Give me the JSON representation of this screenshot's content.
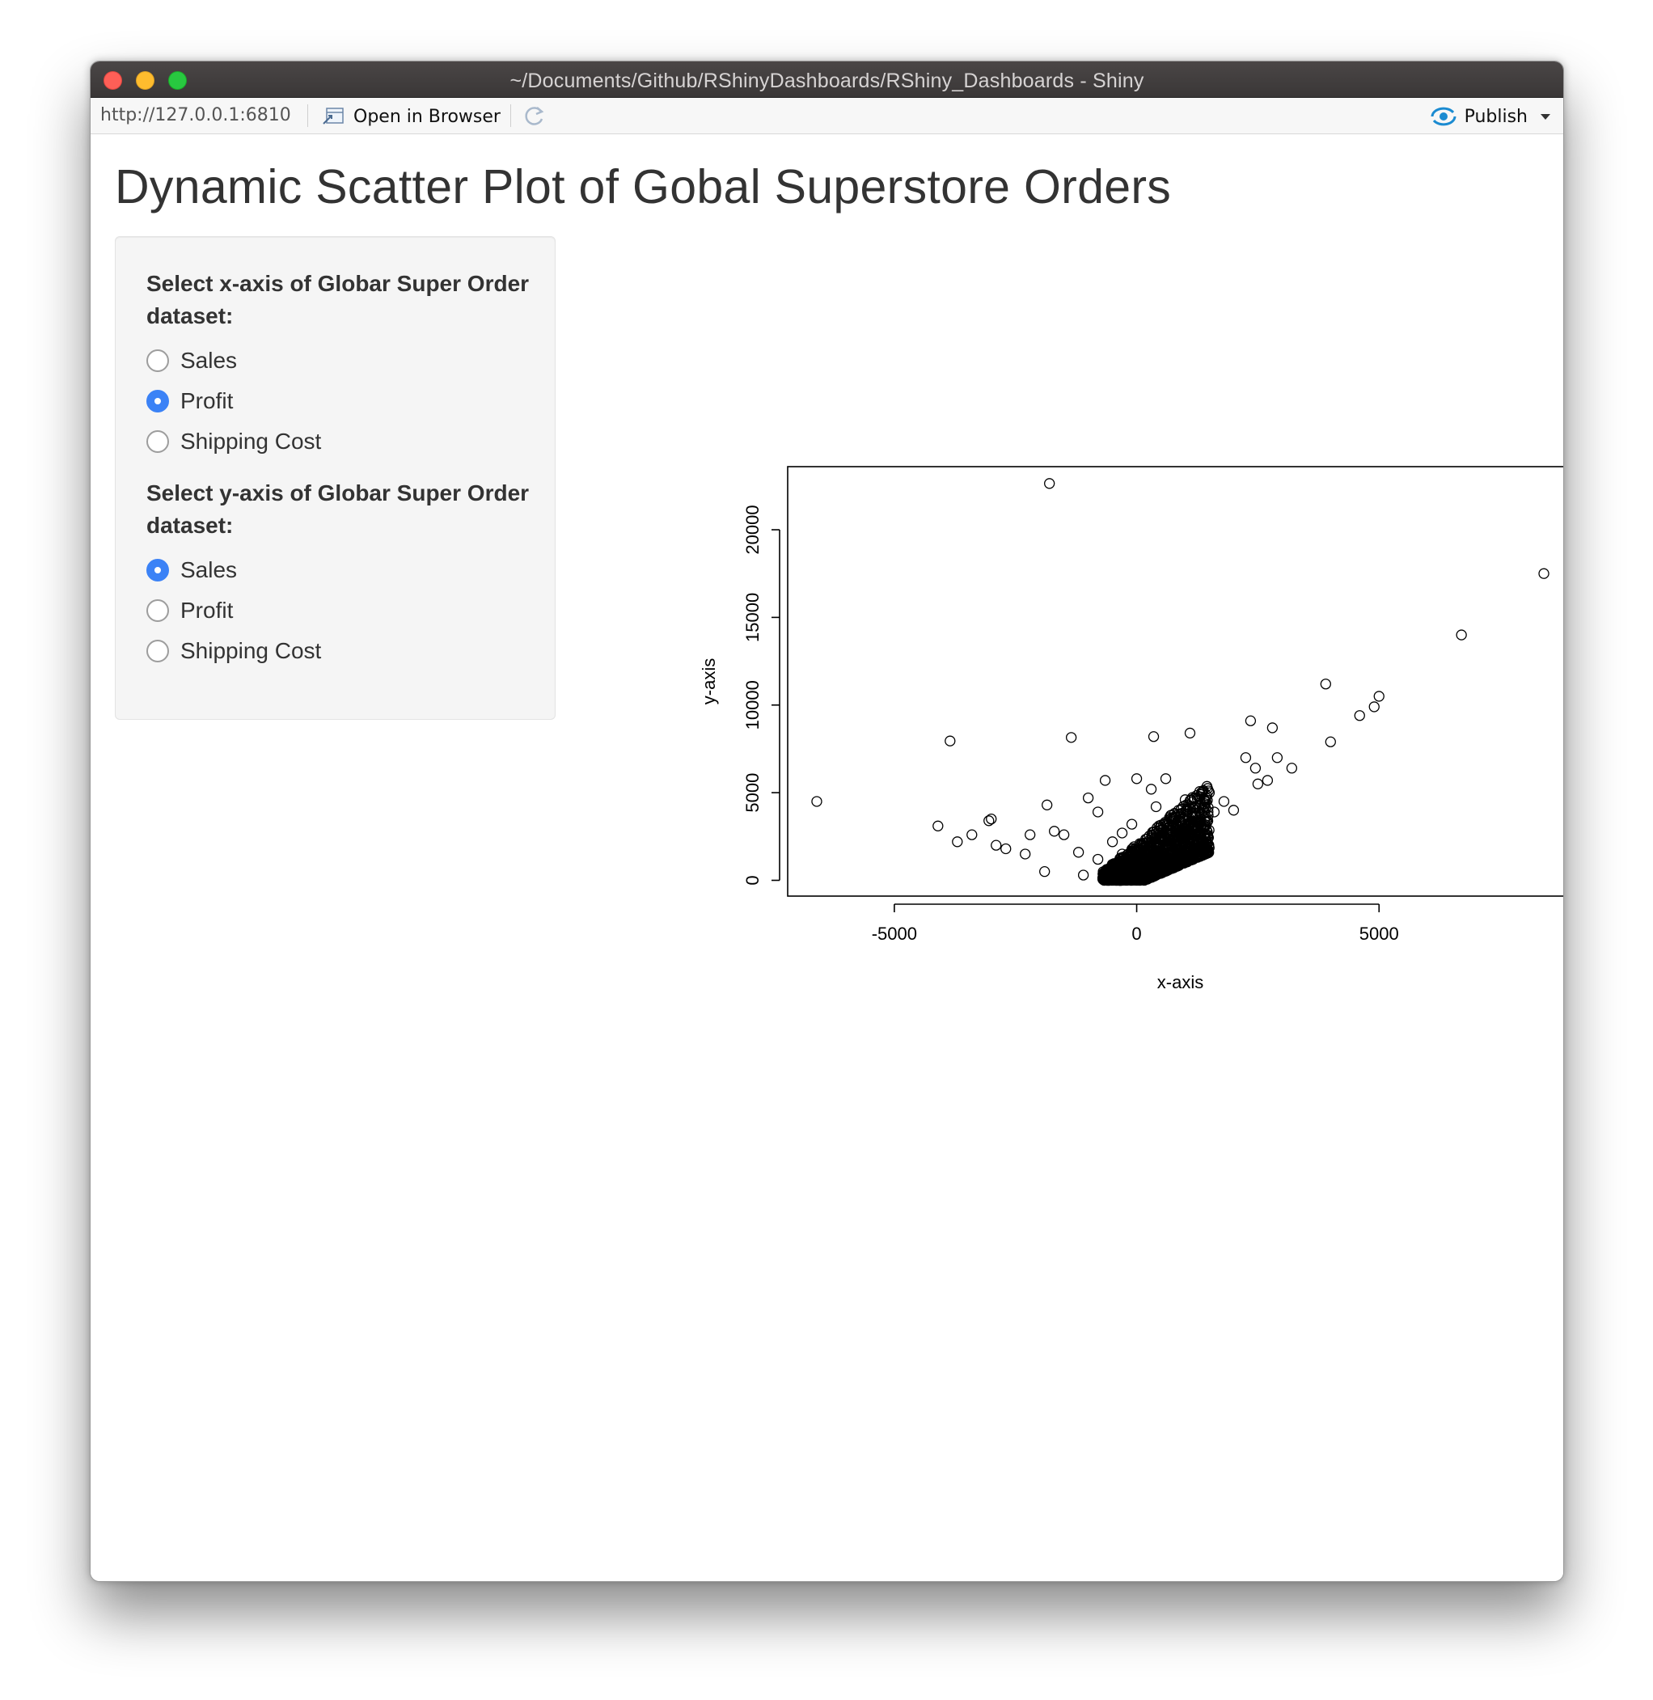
{
  "window": {
    "title": "~/Documents/Github/RShinyDashboards/RShiny_Dashboards - Shiny"
  },
  "toolbar": {
    "url": "http://127.0.0.1:6810",
    "open_browser_label": "Open in Browser",
    "publish_label": "Publish"
  },
  "page": {
    "title": "Dynamic Scatter Plot of Gobal Superstore Orders"
  },
  "x_group": {
    "label": "Select x-axis of Globar Super Order dataset:",
    "options": [
      "Sales",
      "Profit",
      "Shipping Cost"
    ],
    "selected": "Profit"
  },
  "y_group": {
    "label": "Select y-axis of Globar Super Order dataset:",
    "options": [
      "Sales",
      "Profit",
      "Shipping Cost"
    ],
    "selected": "Sales"
  },
  "chart_data": {
    "type": "scatter",
    "xlabel": "x-axis",
    "ylabel": "y-axis",
    "xlim": [
      -7200,
      9000
    ],
    "ylim": [
      -900,
      23600
    ],
    "xticks": [
      -5000,
      0,
      5000
    ],
    "yticks": [
      0,
      5000,
      10000,
      15000,
      20000
    ],
    "marker": "open-circle",
    "grid": false,
    "points": [
      [
        -1800,
        22640
      ],
      [
        8400,
        17500
      ],
      [
        6700,
        14000
      ],
      [
        3900,
        11200
      ],
      [
        5000,
        10500
      ],
      [
        4900,
        9900
      ],
      [
        4600,
        9400
      ],
      [
        2350,
        9100
      ],
      [
        2800,
        8700
      ],
      [
        1100,
        8400
      ],
      [
        350,
        8200
      ],
      [
        -1350,
        8150
      ],
      [
        -3850,
        7950
      ],
      [
        4000,
        7900
      ],
      [
        2900,
        7000
      ],
      [
        2250,
        7000
      ],
      [
        3200,
        6400
      ],
      [
        2450,
        6400
      ],
      [
        2700,
        5700
      ],
      [
        2500,
        5500
      ],
      [
        -6600,
        4500
      ],
      [
        -1850,
        4300
      ],
      [
        -1000,
        4700
      ],
      [
        -650,
        5700
      ],
      [
        -4100,
        3100
      ],
      [
        -3050,
        3400
      ],
      [
        -3000,
        3500
      ],
      [
        -3400,
        2600
      ],
      [
        -3700,
        2200
      ],
      [
        -2900,
        2000
      ],
      [
        -2700,
        1800
      ],
      [
        -2300,
        1500
      ],
      [
        -2200,
        2600
      ],
      [
        -1700,
        2800
      ],
      [
        -1500,
        2600
      ],
      [
        -1200,
        1600
      ],
      [
        -1900,
        500
      ],
      [
        -1100,
        300
      ],
      [
        -800,
        1200
      ],
      [
        -500,
        2200
      ],
      [
        0,
        5800
      ],
      [
        600,
        5800
      ],
      [
        300,
        5200
      ],
      [
        1500,
        5000
      ],
      [
        1800,
        4500
      ],
      [
        2000,
        4000
      ],
      [
        1200,
        3300
      ],
      [
        800,
        2800
      ],
      [
        600,
        1800
      ],
      [
        300,
        1400
      ],
      [
        100,
        900
      ],
      [
        200,
        600
      ],
      [
        0,
        300
      ],
      [
        -200,
        500
      ],
      [
        -400,
        900
      ],
      [
        -600,
        300
      ],
      [
        -300,
        1500
      ],
      [
        700,
        3700
      ],
      [
        1600,
        3900
      ],
      [
        400,
        4200
      ],
      [
        1000,
        4600
      ],
      [
        -100,
        3200
      ],
      [
        -800,
        3900
      ],
      [
        -300,
        2700
      ]
    ]
  }
}
